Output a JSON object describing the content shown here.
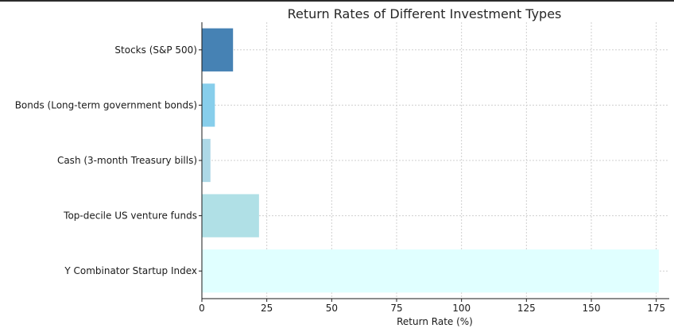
{
  "chart_data": {
    "type": "bar",
    "orientation": "horizontal",
    "title": "Return Rates of Different Investment Types",
    "xlabel": "Return Rate (%)",
    "ylabel": "",
    "xlim": [
      0,
      180
    ],
    "xticks": [
      0,
      25,
      50,
      75,
      100,
      125,
      150,
      175
    ],
    "grid": true,
    "categories": [
      "Stocks (S&P 500)",
      "Bonds (Long-term government bonds)",
      "Cash (3-month Treasury bills)",
      "Top-decile US venture funds",
      "Y Combinator Startup Index"
    ],
    "values": [
      12,
      5,
      3.3,
      22,
      176
    ],
    "colors": [
      "#4682b4",
      "#87ceeb",
      "#add8e6",
      "#b0e0e6",
      "#e0ffff"
    ]
  }
}
